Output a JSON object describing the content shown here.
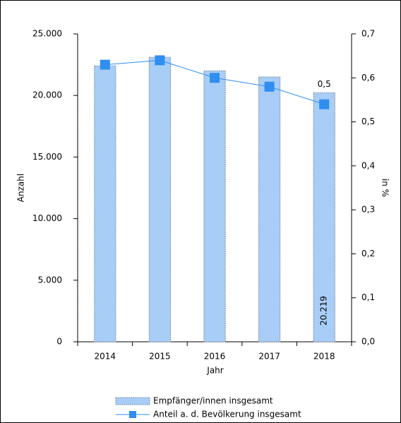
{
  "chart_data": {
    "type": "bar_line",
    "categories": [
      "2014",
      "2015",
      "2016",
      "2017",
      "2018"
    ],
    "x_label": "Jahr",
    "y_label": "Anzahl",
    "y2_label": "in %",
    "series": [
      {
        "name": "Empfänger/innen insgesamt",
        "type": "bar",
        "color": "#a8cdf7",
        "values": [
          22400,
          23100,
          22000,
          21500,
          20219
        ],
        "value_labels": [
          null,
          null,
          null,
          null,
          "20.219"
        ]
      },
      {
        "name": "Anteil a. d. Bevölkerung insgesamt",
        "type": "line",
        "axis": "y2",
        "color": "#2f8ef0",
        "values": [
          0.63,
          0.64,
          0.6,
          0.58,
          0.54
        ],
        "value_labels": [
          null,
          null,
          null,
          null,
          "0,5"
        ]
      }
    ],
    "ylim": [
      0,
      25000
    ],
    "yticks": [
      {
        "value": 0,
        "label": "0"
      },
      {
        "value": 5000,
        "label": "5.000"
      },
      {
        "value": 10000,
        "label": "10.000"
      },
      {
        "value": 15000,
        "label": "15.000"
      },
      {
        "value": 20000,
        "label": "20.000"
      },
      {
        "value": 25000,
        "label": "25.000"
      }
    ],
    "y2lim": [
      0,
      0.7
    ],
    "y2ticks": [
      {
        "value": 0,
        "label": "0,0"
      },
      {
        "value": 0.1,
        "label": "0,1"
      },
      {
        "value": 0.2,
        "label": "0,2"
      },
      {
        "value": 0.3,
        "label": "0,3"
      },
      {
        "value": 0.4,
        "label": "0,4"
      },
      {
        "value": 0.5,
        "label": "0,5"
      },
      {
        "value": 0.6,
        "label": "0,6"
      },
      {
        "value": 0.7,
        "label": "0,7"
      }
    ]
  }
}
